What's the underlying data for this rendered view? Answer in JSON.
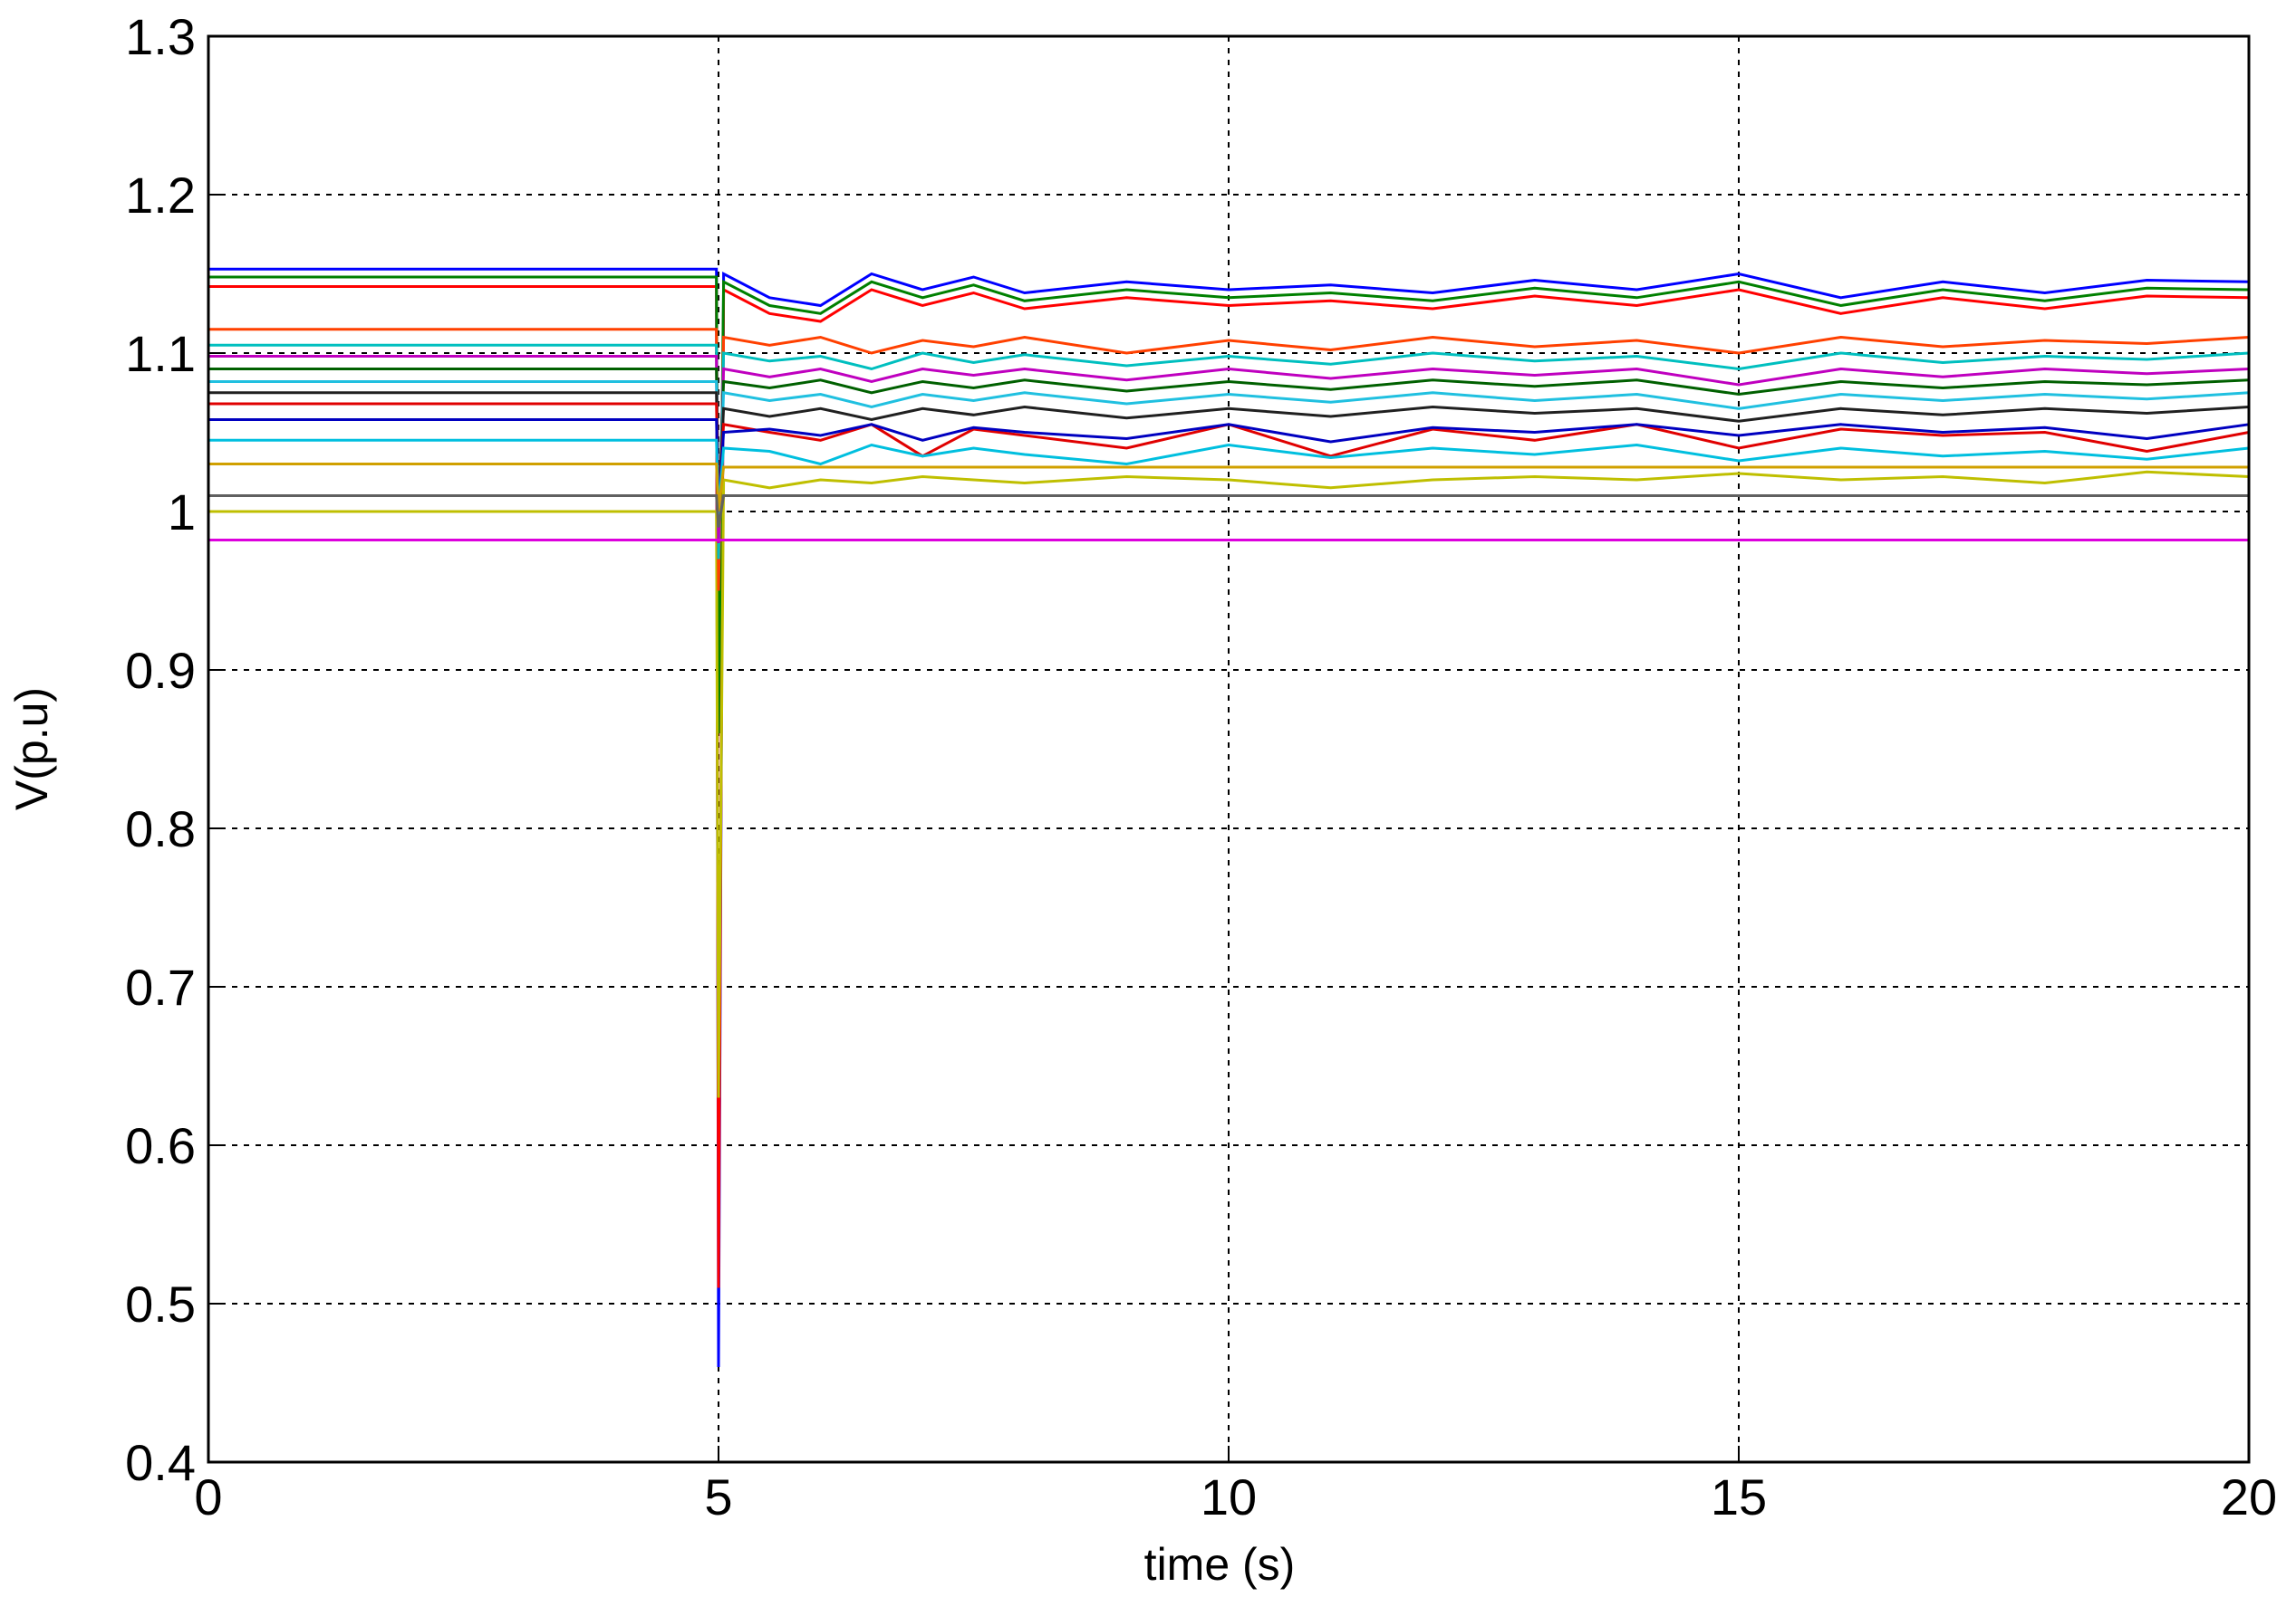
{
  "chart_data": {
    "type": "line",
    "xlabel": "time (s)",
    "ylabel": "V(p.u)",
    "x": [
      0,
      4.98,
      5.0,
      5.05,
      5.5,
      6,
      6.5,
      7,
      7.5,
      8,
      9,
      10,
      11,
      12,
      13,
      14,
      15,
      16,
      17,
      18,
      19,
      20
    ],
    "series": [
      {
        "color": "#0000ff",
        "values": [
          1.153,
          1.153,
          0.46,
          1.15,
          1.135,
          1.13,
          1.15,
          1.14,
          1.148,
          1.138,
          1.145,
          1.14,
          1.143,
          1.138,
          1.146,
          1.14,
          1.15,
          1.135,
          1.145,
          1.138,
          1.146,
          1.145
        ]
      },
      {
        "color": "#ff0000",
        "values": [
          1.142,
          1.142,
          0.51,
          1.14,
          1.125,
          1.12,
          1.14,
          1.13,
          1.138,
          1.128,
          1.135,
          1.13,
          1.133,
          1.128,
          1.136,
          1.13,
          1.14,
          1.125,
          1.135,
          1.128,
          1.136,
          1.135
        ]
      },
      {
        "color": "#008000",
        "values": [
          1.148,
          1.148,
          0.86,
          1.145,
          1.13,
          1.125,
          1.145,
          1.135,
          1.143,
          1.133,
          1.14,
          1.135,
          1.138,
          1.133,
          1.141,
          1.135,
          1.145,
          1.13,
          1.14,
          1.133,
          1.141,
          1.14
        ]
      },
      {
        "color": "#bfbf00",
        "values": [
          1.0,
          1.0,
          0.63,
          1.02,
          1.015,
          1.02,
          1.018,
          1.022,
          1.02,
          1.018,
          1.022,
          1.02,
          1.015,
          1.02,
          1.022,
          1.02,
          1.024,
          1.02,
          1.022,
          1.018,
          1.025,
          1.022
        ]
      },
      {
        "color": "#ff4000",
        "values": [
          1.115,
          1.115,
          0.95,
          1.11,
          1.105,
          1.11,
          1.1,
          1.108,
          1.104,
          1.11,
          1.1,
          1.108,
          1.102,
          1.11,
          1.104,
          1.108,
          1.1,
          1.11,
          1.104,
          1.108,
          1.106,
          1.11
        ]
      },
      {
        "color": "#00bfbf",
        "values": [
          1.105,
          1.105,
          0.97,
          1.1,
          1.095,
          1.098,
          1.09,
          1.1,
          1.094,
          1.099,
          1.092,
          1.098,
          1.093,
          1.1,
          1.095,
          1.098,
          1.09,
          1.1,
          1.094,
          1.098,
          1.096,
          1.1
        ]
      },
      {
        "color": "#bf00bf",
        "values": [
          1.098,
          1.098,
          0.98,
          1.09,
          1.085,
          1.09,
          1.082,
          1.09,
          1.086,
          1.09,
          1.083,
          1.09,
          1.084,
          1.09,
          1.086,
          1.09,
          1.08,
          1.09,
          1.085,
          1.09,
          1.087,
          1.09
        ]
      },
      {
        "color": "#006000",
        "values": [
          1.09,
          1.09,
          0.99,
          1.082,
          1.078,
          1.083,
          1.075,
          1.082,
          1.078,
          1.083,
          1.076,
          1.082,
          1.077,
          1.083,
          1.079,
          1.083,
          1.074,
          1.082,
          1.078,
          1.082,
          1.08,
          1.083
        ]
      },
      {
        "color": "#20c0e0",
        "values": [
          1.082,
          1.082,
          0.99,
          1.075,
          1.07,
          1.074,
          1.066,
          1.074,
          1.07,
          1.075,
          1.068,
          1.074,
          1.069,
          1.075,
          1.07,
          1.074,
          1.065,
          1.074,
          1.07,
          1.074,
          1.071,
          1.075
        ]
      },
      {
        "color": "#202020",
        "values": [
          1.075,
          1.075,
          1.0,
          1.065,
          1.06,
          1.065,
          1.058,
          1.065,
          1.061,
          1.066,
          1.059,
          1.065,
          1.06,
          1.066,
          1.062,
          1.065,
          1.057,
          1.065,
          1.061,
          1.065,
          1.062,
          1.066
        ]
      },
      {
        "color": "#e00000",
        "values": [
          1.068,
          1.068,
          1.0,
          1.055,
          1.05,
          1.045,
          1.055,
          1.035,
          1.052,
          1.048,
          1.04,
          1.055,
          1.035,
          1.052,
          1.045,
          1.055,
          1.04,
          1.052,
          1.048,
          1.05,
          1.038,
          1.05
        ]
      },
      {
        "color": "#0000c0",
        "values": [
          1.058,
          1.058,
          1.0,
          1.05,
          1.052,
          1.048,
          1.055,
          1.045,
          1.053,
          1.05,
          1.046,
          1.055,
          1.044,
          1.053,
          1.05,
          1.055,
          1.048,
          1.055,
          1.05,
          1.053,
          1.046,
          1.055
        ]
      },
      {
        "color": "#00bfdf",
        "values": [
          1.045,
          1.045,
          1.0,
          1.04,
          1.038,
          1.03,
          1.042,
          1.035,
          1.04,
          1.036,
          1.03,
          1.042,
          1.034,
          1.04,
          1.036,
          1.042,
          1.032,
          1.04,
          1.035,
          1.038,
          1.033,
          1.04
        ]
      },
      {
        "color": "#d0a000",
        "values": [
          1.03,
          1.03,
          1.0,
          1.028,
          1.028,
          1.028,
          1.028,
          1.028,
          1.028,
          1.028,
          1.028,
          1.028,
          1.028,
          1.028,
          1.028,
          1.028,
          1.028,
          1.028,
          1.028,
          1.028,
          1.028,
          1.028
        ]
      },
      {
        "color": "#606060",
        "values": [
          1.01,
          1.01,
          0.99,
          1.01,
          1.01,
          1.01,
          1.01,
          1.01,
          1.01,
          1.01,
          1.01,
          1.01,
          1.01,
          1.01,
          1.01,
          1.01,
          1.01,
          1.01,
          1.01,
          1.01,
          1.01,
          1.01
        ]
      },
      {
        "color": "#dd00dd",
        "values": [
          0.982,
          0.982,
          0.982,
          0.982,
          0.982,
          0.982,
          0.982,
          0.982,
          0.982,
          0.982,
          0.982,
          0.982,
          0.982,
          0.982,
          0.982,
          0.982,
          0.982,
          0.982,
          0.982,
          0.982,
          0.982,
          0.982
        ]
      }
    ],
    "xlim": [
      0,
      20
    ],
    "xticks": [
      0,
      5,
      10,
      15,
      20
    ],
    "ylim": [
      0.4,
      1.3
    ],
    "yticks": [
      0.4,
      0.5,
      0.6,
      0.7,
      0.8,
      0.9,
      1,
      1.1,
      1.2,
      1.3
    ],
    "grid": true
  }
}
